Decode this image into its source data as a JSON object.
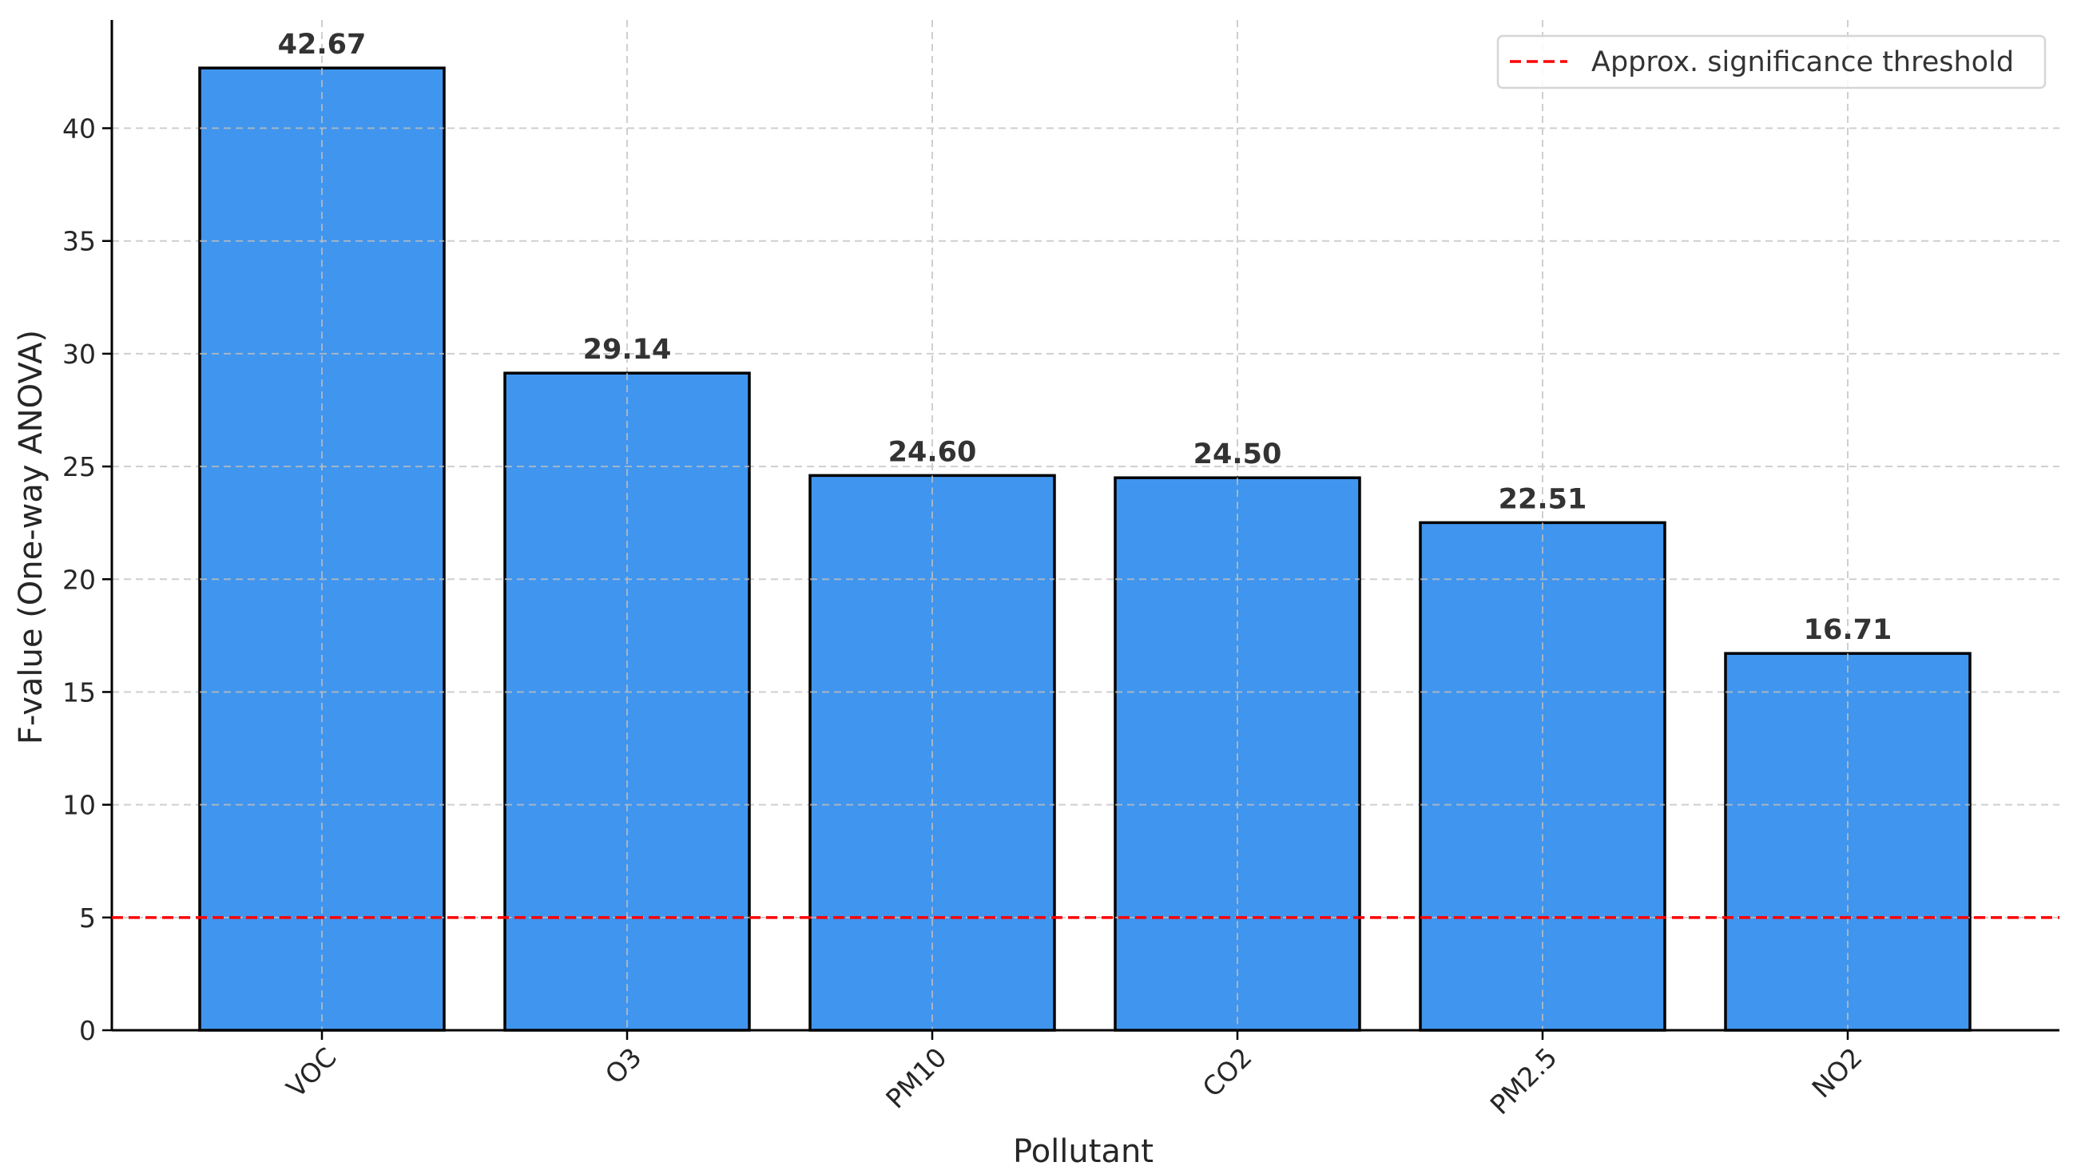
{
  "chart_data": {
    "type": "bar",
    "categories": [
      "VOC",
      "O3",
      "PM10",
      "CO2",
      "PM2.5",
      "NO2"
    ],
    "values": [
      42.67,
      29.14,
      24.6,
      24.5,
      22.51,
      16.71
    ],
    "value_labels": [
      "42.67",
      "29.14",
      "24.60",
      "24.50",
      "22.51",
      "16.71"
    ],
    "title": "",
    "xlabel": "Pollutant",
    "ylabel": "F-value (One-way ANOVA)",
    "ylim": [
      0,
      44.8
    ],
    "yticks": [
      0,
      5,
      10,
      15,
      20,
      25,
      30,
      35,
      40
    ],
    "grid": true,
    "bar_color": "#4095ee",
    "bar_edge_color": "#000000",
    "threshold": {
      "value": 5,
      "label": "Approx. significance threshold",
      "color": "#ff0000",
      "style": "dashed"
    },
    "legend_position": "top-right",
    "xtick_rotation": 45
  }
}
